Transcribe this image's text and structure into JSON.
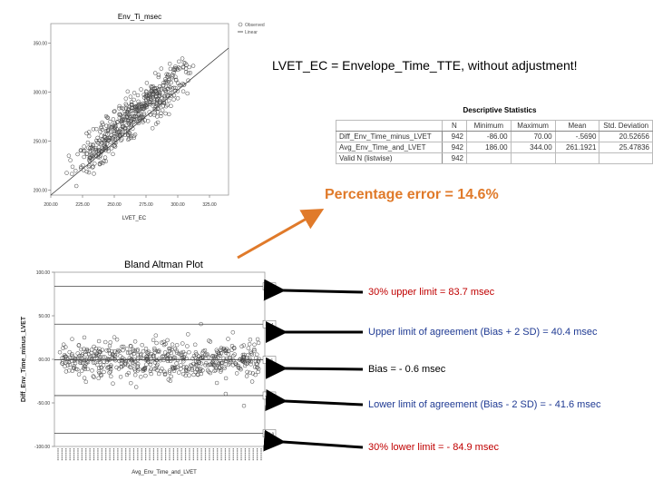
{
  "headline": "LVET_EC = Envelope_Time_TTE, without adjustment!",
  "percentage_error": "Percentage error = 14.6%",
  "bland_altman_title": "Bland Altman Plot",
  "descriptive_stats": {
    "title": "Descriptive Statistics",
    "headers": [
      "",
      "N",
      "Minimum",
      "Maximum",
      "Mean",
      "Std. Deviation"
    ],
    "rows": [
      [
        "Diff_Env_Time_minus_LVET",
        "942",
        "-86.00",
        "70.00",
        "-.5690",
        "20.52656"
      ],
      [
        "Avg_Env_Time_and_LVET",
        "942",
        "186.00",
        "344.00",
        "261.1921",
        "25.47836"
      ],
      [
        "Valid N (listwise)",
        "942",
        "",
        "",
        "",
        ""
      ]
    ]
  },
  "annotations": [
    {
      "text": "30% upper limit = 83.7 msec",
      "color": "#c00000"
    },
    {
      "text": "Upper limit of agreement (Bias + 2 SD) = 40.4 msec",
      "color": "#1f3a93"
    },
    {
      "text": "Bias = - 0.6 msec",
      "color": "#000000"
    },
    {
      "text": "Lower limit of agreement (Bias - 2 SD) = - 41.6 msec",
      "color": "#1f3a93"
    },
    {
      "text": "30% lower limit = - 84.9 msec",
      "color": "#c00000"
    }
  ],
  "colors": {
    "accent": "#e07a2a",
    "red": "#c00000",
    "blue": "#1f3a93"
  },
  "chart_data": [
    {
      "type": "scatter",
      "title": "Env_Ti_msec",
      "xlabel": "LVET_EC",
      "ylabel": "",
      "x_ticks": [
        "200.00",
        "225.00",
        "250.00",
        "275.00",
        "300.00",
        "325.00"
      ],
      "y_ticks": [
        "200.00",
        "250.00",
        "300.00",
        "350.00"
      ],
      "xlim": [
        200,
        340
      ],
      "ylim": [
        195,
        370
      ],
      "legend": [
        "Observed",
        "Linear"
      ],
      "fit_line": {
        "x": [
          200,
          340
        ],
        "y": [
          195,
          345
        ]
      },
      "n_points": 942
    },
    {
      "type": "scatter",
      "title": "Bland Altman Plot",
      "xlabel": "Avg_Env_Time_and_LVET",
      "ylabel": "Diff_Env_Time_minus_LVET",
      "y_ticks": [
        "100.00",
        "50.00",
        "00.00",
        "-50.00",
        "-100.00"
      ],
      "ylim": [
        -100,
        100
      ],
      "reference_lines": [
        {
          "name": "30% upper limit",
          "value": 83.7,
          "label": "83.7"
        },
        {
          "name": "Upper limit of agreement",
          "value": 40.4,
          "label": "40.4"
        },
        {
          "name": "Bias",
          "value": -0.6,
          "label": "-0.6"
        },
        {
          "name": "Lower limit of agreement",
          "value": -41.6,
          "label": "-41.6"
        },
        {
          "name": "30% lower limit",
          "value": -84.9,
          "label": "-84.9"
        }
      ],
      "n_points": 942
    }
  ]
}
